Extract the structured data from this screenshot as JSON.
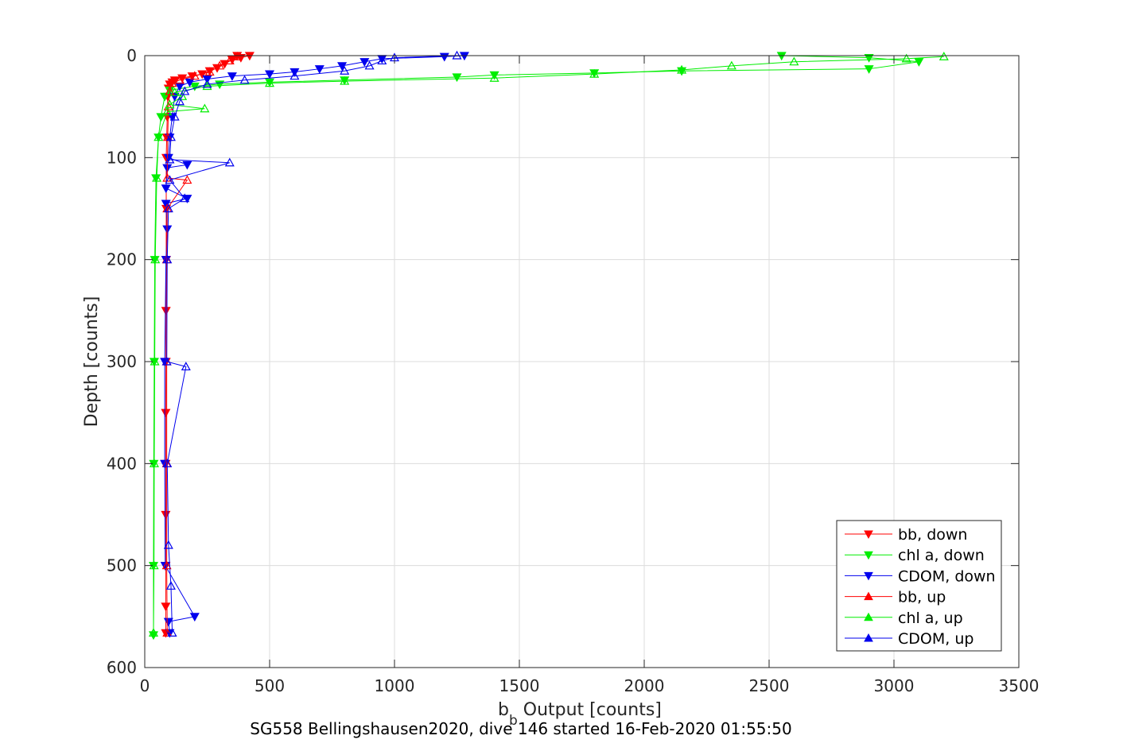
{
  "chart_data": {
    "type": "line",
    "xlabel_main": "b",
    "xlabel_sub": "b",
    "xlabel_rest": " Output [counts]",
    "ylabel": "Depth [counts]",
    "caption": "SG558 Bellingshausen2020, dive 146 started 16-Feb-2020 01:55:50",
    "xlim": [
      0,
      3500
    ],
    "ylim": [
      0,
      600
    ],
    "y_reversed": true,
    "grid": true,
    "x_ticks": [
      0,
      500,
      1000,
      1500,
      2000,
      2500,
      3000,
      3500
    ],
    "x_tick_labels": [
      "0",
      "500",
      "1000",
      "1500",
      "2000",
      "2500",
      "3000",
      "3500"
    ],
    "y_ticks": [
      0,
      100,
      200,
      300,
      400,
      500,
      600
    ],
    "y_tick_labels": [
      "0",
      "100",
      "200",
      "300",
      "400",
      "500",
      "600"
    ],
    "legend_position": "bottom-right",
    "series": [
      {
        "name": "bb, down",
        "color": "#ff0000",
        "marker": "triangle-down",
        "points": [
          [
            370,
            0
          ],
          [
            420,
            0
          ],
          [
            385,
            2
          ],
          [
            350,
            4
          ],
          [
            320,
            8
          ],
          [
            290,
            12
          ],
          [
            260,
            15
          ],
          [
            230,
            18
          ],
          [
            190,
            20
          ],
          [
            150,
            22
          ],
          [
            120,
            24
          ],
          [
            110,
            26
          ],
          [
            100,
            28
          ],
          [
            95,
            32
          ],
          [
            92,
            40
          ],
          [
            90,
            60
          ],
          [
            88,
            80
          ],
          [
            86,
            100
          ],
          [
            86,
            150
          ],
          [
            86,
            200
          ],
          [
            85,
            250
          ],
          [
            85,
            300
          ],
          [
            84,
            350
          ],
          [
            84,
            400
          ],
          [
            84,
            450
          ],
          [
            84,
            500
          ],
          [
            84,
            540
          ],
          [
            84,
            566
          ]
        ]
      },
      {
        "name": "chl a, down",
        "color": "#00ee00",
        "marker": "triangle-down",
        "points": [
          [
            2550,
            0
          ],
          [
            2900,
            2
          ],
          [
            3100,
            6
          ],
          [
            2900,
            13
          ],
          [
            2150,
            15
          ],
          [
            1800,
            17
          ],
          [
            1400,
            19
          ],
          [
            1250,
            21
          ],
          [
            800,
            24
          ],
          [
            500,
            26
          ],
          [
            300,
            28
          ],
          [
            200,
            30
          ],
          [
            100,
            34
          ],
          [
            80,
            40
          ],
          [
            65,
            60
          ],
          [
            55,
            80
          ],
          [
            45,
            120
          ],
          [
            40,
            200
          ],
          [
            38,
            300
          ],
          [
            36,
            400
          ],
          [
            35,
            500
          ],
          [
            35,
            568
          ]
        ]
      },
      {
        "name": "CDOM, down",
        "color": "#0000ee",
        "marker": "triangle-down",
        "points": [
          [
            1280,
            0
          ],
          [
            1200,
            1
          ],
          [
            950,
            3
          ],
          [
            880,
            6
          ],
          [
            790,
            10
          ],
          [
            700,
            13
          ],
          [
            600,
            16
          ],
          [
            500,
            18
          ],
          [
            350,
            20
          ],
          [
            250,
            23
          ],
          [
            180,
            26
          ],
          [
            140,
            30
          ],
          [
            120,
            40
          ],
          [
            110,
            60
          ],
          [
            100,
            80
          ],
          [
            95,
            100
          ],
          [
            170,
            107
          ],
          [
            90,
            110
          ],
          [
            85,
            130
          ],
          [
            170,
            140
          ],
          [
            85,
            145
          ],
          [
            90,
            170
          ],
          [
            85,
            200
          ],
          [
            80,
            300
          ],
          [
            80,
            400
          ],
          [
            82,
            500
          ],
          [
            200,
            550
          ],
          [
            95,
            555
          ],
          [
            100,
            566
          ]
        ]
      },
      {
        "name": "bb, up",
        "color": "#ff0000",
        "marker": "triangle-up",
        "points": [
          [
            90,
            566
          ],
          [
            88,
            500
          ],
          [
            88,
            400
          ],
          [
            88,
            300
          ],
          [
            88,
            200
          ],
          [
            90,
            150
          ],
          [
            170,
            122
          ],
          [
            90,
            120
          ],
          [
            92,
            80
          ],
          [
            95,
            50
          ],
          [
            100,
            35
          ],
          [
            110,
            27
          ],
          [
            140,
            24
          ],
          [
            200,
            20
          ],
          [
            260,
            16
          ],
          [
            300,
            10
          ],
          [
            340,
            5
          ],
          [
            370,
            1
          ]
        ]
      },
      {
        "name": "chl a, up",
        "color": "#00ee00",
        "marker": "triangle-up",
        "points": [
          [
            35,
            566
          ],
          [
            37,
            500
          ],
          [
            38,
            400
          ],
          [
            40,
            300
          ],
          [
            42,
            200
          ],
          [
            48,
            120
          ],
          [
            55,
            80
          ],
          [
            90,
            55
          ],
          [
            240,
            52
          ],
          [
            100,
            48
          ],
          [
            150,
            40
          ],
          [
            120,
            36
          ],
          [
            250,
            30
          ],
          [
            500,
            27
          ],
          [
            800,
            25
          ],
          [
            1400,
            22
          ],
          [
            1800,
            18
          ],
          [
            2150,
            14
          ],
          [
            2350,
            10
          ],
          [
            2600,
            6
          ],
          [
            3050,
            3
          ],
          [
            3200,
            1
          ]
        ]
      },
      {
        "name": "CDOM, up",
        "color": "#0000ee",
        "marker": "triangle-up",
        "points": [
          [
            110,
            566
          ],
          [
            105,
            520
          ],
          [
            95,
            480
          ],
          [
            90,
            400
          ],
          [
            165,
            305
          ],
          [
            88,
            300
          ],
          [
            90,
            200
          ],
          [
            95,
            150
          ],
          [
            160,
            140
          ],
          [
            100,
            122
          ],
          [
            340,
            105
          ],
          [
            100,
            102
          ],
          [
            105,
            80
          ],
          [
            120,
            60
          ],
          [
            140,
            45
          ],
          [
            160,
            35
          ],
          [
            250,
            28
          ],
          [
            400,
            24
          ],
          [
            600,
            20
          ],
          [
            800,
            15
          ],
          [
            900,
            10
          ],
          [
            950,
            5
          ],
          [
            1000,
            2
          ],
          [
            1250,
            0
          ]
        ]
      }
    ]
  }
}
